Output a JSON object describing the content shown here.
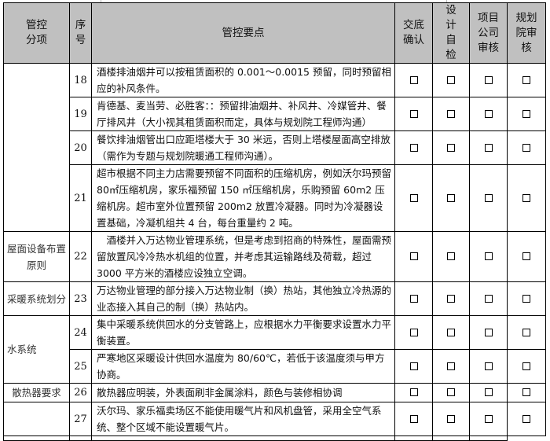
{
  "header": {
    "category": "管控分项",
    "number": "序号",
    "points": "管控要点",
    "confirm": "交底确认",
    "self_check": "设计自检",
    "project_review": "项目公司审核",
    "institute_review": "规划院审核"
  },
  "rows": [
    {
      "category": "",
      "number": "18",
      "text": "酒楼排油烟井可以按租赁面积的 0.001～0.0015 预留，同时预留相应的补风条件。"
    },
    {
      "number": "19",
      "text": "肯德基、麦当劳、必胜客：：预留排油烟井、补风井、冷媒管井、餐厅排风井（大小视其租赁面积而定，具体与规划院工程师沟通）"
    },
    {
      "number": "20",
      "text": "餐饮排油烟管出口应距塔楼大于 30 米远，否则上塔楼屋面高空排放（需作为专题与规划院暖通工程师沟通）。"
    },
    {
      "number": "21",
      "text": "超市根据不同主力店需要预留不同面积的压缩机房，例如沃尔玛预留 80㎡压缩机房，家乐福预留 150 ㎡压缩机房，乐购预留 60m2 压缩机房。超市室外位置预留 200m2 放置冷凝器。同时为冷凝器设置基础，冷凝机组共 4 台，每台重量约 2 吨。"
    },
    {
      "category": "屋面设备布置原则",
      "number": "22",
      "text": "　酒楼并入万达物业管理系统，但是考虑到招商的特殊性，屋面需预留放置风冷冷热水机组的位置，并考虑其运输路线及荷载，超过 3000 平方米的酒楼应设独立空调。"
    },
    {
      "category": "采暖系统划分",
      "number": "23",
      "text": "万达物业管理的部分接入万达物业制（换）热站，其他独立冷热源的业态接入其自己的制（换）热站内。"
    },
    {
      "category": "水系统",
      "number": "24",
      "text": "集中采暖系统供回水的分支管路上，应根据水力平衡要求设置水力平衡装置。"
    },
    {
      "number": "25",
      "text": "严寒地区采暖设计供回水温度为 80/60℃，若低于该温度须与甲方协商。"
    },
    {
      "category": "散热器要求",
      "number": "26",
      "text": "散热器应明装，外表面刷非金属涂料，颜色与装修相协调"
    },
    {
      "category": "",
      "number": "27",
      "text": "沃尔玛、家乐福卖场区不能使用暖气片和风机盘管，采用全空气系统、整个区域不能设置暖气片。"
    }
  ]
}
